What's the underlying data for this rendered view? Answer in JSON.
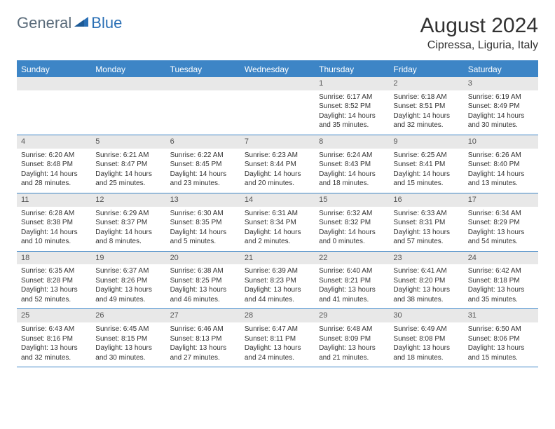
{
  "logo": {
    "text1": "General",
    "text2": "Blue"
  },
  "header": {
    "month": "August 2024",
    "location": "Cipressa, Liguria, Italy"
  },
  "colors": {
    "header_blue": "#3d85c6",
    "daynum_bg": "#e8e8e8",
    "text": "#333333",
    "logo_gray": "#5a6b7a",
    "logo_blue": "#2a6fb5"
  },
  "weekdays": [
    "Sunday",
    "Monday",
    "Tuesday",
    "Wednesday",
    "Thursday",
    "Friday",
    "Saturday"
  ],
  "weeks": [
    [
      null,
      null,
      null,
      null,
      {
        "n": "1",
        "sr": "6:17 AM",
        "ss": "8:52 PM",
        "dl": "14 hours and 35 minutes."
      },
      {
        "n": "2",
        "sr": "6:18 AM",
        "ss": "8:51 PM",
        "dl": "14 hours and 32 minutes."
      },
      {
        "n": "3",
        "sr": "6:19 AM",
        "ss": "8:49 PM",
        "dl": "14 hours and 30 minutes."
      }
    ],
    [
      {
        "n": "4",
        "sr": "6:20 AM",
        "ss": "8:48 PM",
        "dl": "14 hours and 28 minutes."
      },
      {
        "n": "5",
        "sr": "6:21 AM",
        "ss": "8:47 PM",
        "dl": "14 hours and 25 minutes."
      },
      {
        "n": "6",
        "sr": "6:22 AM",
        "ss": "8:45 PM",
        "dl": "14 hours and 23 minutes."
      },
      {
        "n": "7",
        "sr": "6:23 AM",
        "ss": "8:44 PM",
        "dl": "14 hours and 20 minutes."
      },
      {
        "n": "8",
        "sr": "6:24 AM",
        "ss": "8:43 PM",
        "dl": "14 hours and 18 minutes."
      },
      {
        "n": "9",
        "sr": "6:25 AM",
        "ss": "8:41 PM",
        "dl": "14 hours and 15 minutes."
      },
      {
        "n": "10",
        "sr": "6:26 AM",
        "ss": "8:40 PM",
        "dl": "14 hours and 13 minutes."
      }
    ],
    [
      {
        "n": "11",
        "sr": "6:28 AM",
        "ss": "8:38 PM",
        "dl": "14 hours and 10 minutes."
      },
      {
        "n": "12",
        "sr": "6:29 AM",
        "ss": "8:37 PM",
        "dl": "14 hours and 8 minutes."
      },
      {
        "n": "13",
        "sr": "6:30 AM",
        "ss": "8:35 PM",
        "dl": "14 hours and 5 minutes."
      },
      {
        "n": "14",
        "sr": "6:31 AM",
        "ss": "8:34 PM",
        "dl": "14 hours and 2 minutes."
      },
      {
        "n": "15",
        "sr": "6:32 AM",
        "ss": "8:32 PM",
        "dl": "14 hours and 0 minutes."
      },
      {
        "n": "16",
        "sr": "6:33 AM",
        "ss": "8:31 PM",
        "dl": "13 hours and 57 minutes."
      },
      {
        "n": "17",
        "sr": "6:34 AM",
        "ss": "8:29 PM",
        "dl": "13 hours and 54 minutes."
      }
    ],
    [
      {
        "n": "18",
        "sr": "6:35 AM",
        "ss": "8:28 PM",
        "dl": "13 hours and 52 minutes."
      },
      {
        "n": "19",
        "sr": "6:37 AM",
        "ss": "8:26 PM",
        "dl": "13 hours and 49 minutes."
      },
      {
        "n": "20",
        "sr": "6:38 AM",
        "ss": "8:25 PM",
        "dl": "13 hours and 46 minutes."
      },
      {
        "n": "21",
        "sr": "6:39 AM",
        "ss": "8:23 PM",
        "dl": "13 hours and 44 minutes."
      },
      {
        "n": "22",
        "sr": "6:40 AM",
        "ss": "8:21 PM",
        "dl": "13 hours and 41 minutes."
      },
      {
        "n": "23",
        "sr": "6:41 AM",
        "ss": "8:20 PM",
        "dl": "13 hours and 38 minutes."
      },
      {
        "n": "24",
        "sr": "6:42 AM",
        "ss": "8:18 PM",
        "dl": "13 hours and 35 minutes."
      }
    ],
    [
      {
        "n": "25",
        "sr": "6:43 AM",
        "ss": "8:16 PM",
        "dl": "13 hours and 32 minutes."
      },
      {
        "n": "26",
        "sr": "6:45 AM",
        "ss": "8:15 PM",
        "dl": "13 hours and 30 minutes."
      },
      {
        "n": "27",
        "sr": "6:46 AM",
        "ss": "8:13 PM",
        "dl": "13 hours and 27 minutes."
      },
      {
        "n": "28",
        "sr": "6:47 AM",
        "ss": "8:11 PM",
        "dl": "13 hours and 24 minutes."
      },
      {
        "n": "29",
        "sr": "6:48 AM",
        "ss": "8:09 PM",
        "dl": "13 hours and 21 minutes."
      },
      {
        "n": "30",
        "sr": "6:49 AM",
        "ss": "8:08 PM",
        "dl": "13 hours and 18 minutes."
      },
      {
        "n": "31",
        "sr": "6:50 AM",
        "ss": "8:06 PM",
        "dl": "13 hours and 15 minutes."
      }
    ]
  ],
  "labels": {
    "sunrise": "Sunrise:",
    "sunset": "Sunset:",
    "daylight": "Daylight:"
  }
}
